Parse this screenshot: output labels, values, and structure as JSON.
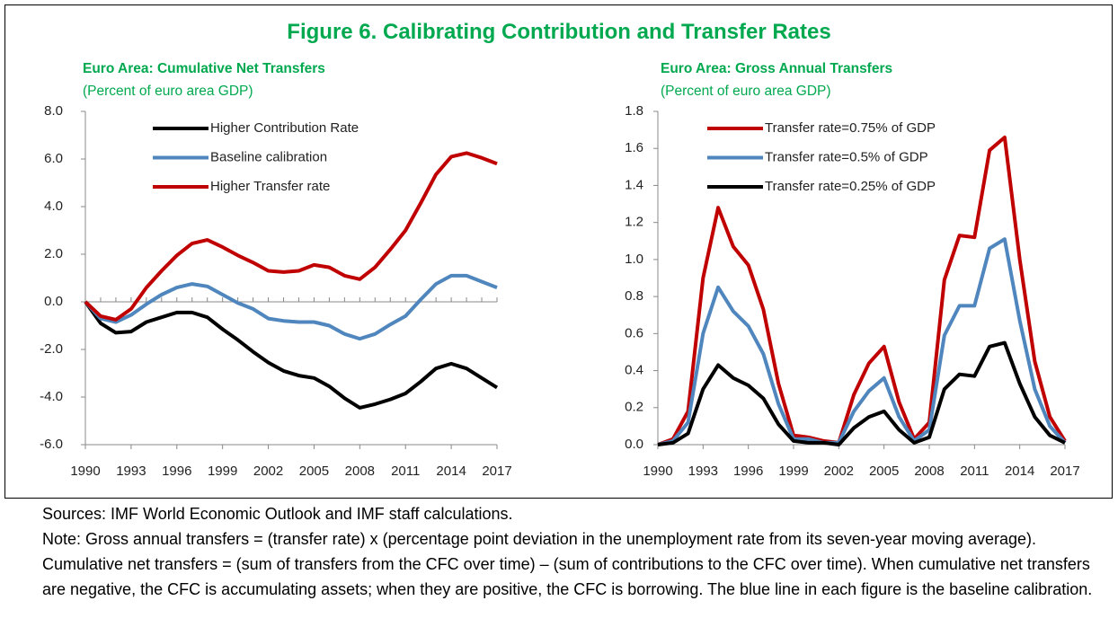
{
  "title": "Figure 6. Calibrating Contribution and Transfer Rates",
  "chart_data": [
    {
      "type": "line",
      "title": "Euro Area: Cumulative Net Transfers",
      "subtitle": "(Percent of euro area GDP)",
      "x": [
        1990,
        1991,
        1992,
        1993,
        1994,
        1995,
        1996,
        1997,
        1998,
        1999,
        2000,
        2001,
        2002,
        2003,
        2004,
        2005,
        2006,
        2007,
        2008,
        2009,
        2010,
        2011,
        2012,
        2013,
        2014,
        2015,
        2016,
        2017
      ],
      "series": [
        {
          "name": "Higher Contribution Rate",
          "color": "#000000",
          "values": [
            0,
            -0.9,
            -1.3,
            -1.25,
            -0.85,
            -0.65,
            -0.45,
            -0.45,
            -0.65,
            -1.15,
            -1.6,
            -2.1,
            -2.55,
            -2.9,
            -3.1,
            -3.2,
            -3.55,
            -4.05,
            -4.45,
            -4.3,
            -4.1,
            -3.85,
            -3.35,
            -2.8,
            -2.6,
            -2.8,
            -3.2,
            -3.6
          ]
        },
        {
          "name": "Baseline calibration",
          "color": "#4f86bd",
          "values": [
            0,
            -0.7,
            -0.85,
            -0.55,
            -0.1,
            0.3,
            0.6,
            0.75,
            0.65,
            0.3,
            -0.05,
            -0.3,
            -0.7,
            -0.8,
            -0.85,
            -0.85,
            -1.0,
            -1.35,
            -1.55,
            -1.35,
            -0.95,
            -0.6,
            0.1,
            0.75,
            1.1,
            1.1,
            0.85,
            0.6
          ]
        },
        {
          "name": "Higher Transfer rate",
          "color": "#c00000",
          "values": [
            0,
            -0.6,
            -0.75,
            -0.3,
            0.6,
            1.3,
            1.95,
            2.45,
            2.6,
            2.3,
            1.95,
            1.65,
            1.3,
            1.25,
            1.3,
            1.55,
            1.45,
            1.1,
            0.95,
            1.45,
            2.2,
            3.0,
            4.15,
            5.35,
            6.1,
            6.25,
            6.05,
            5.8
          ]
        }
      ],
      "xlim": [
        1990,
        2017
      ],
      "xticks": [
        1990,
        1993,
        1996,
        1999,
        2002,
        2005,
        2008,
        2011,
        2014,
        2017
      ],
      "ylim": [
        -6,
        8
      ],
      "yticks": [
        {
          "value": -6,
          "label": "-6.0"
        },
        {
          "value": -4,
          "label": "-4.0"
        },
        {
          "value": -2,
          "label": "-2.0"
        },
        {
          "value": 0,
          "label": "0.0"
        },
        {
          "value": 2,
          "label": "2.0"
        },
        {
          "value": 4,
          "label": "4.0"
        },
        {
          "value": 6,
          "label": "6.0"
        },
        {
          "value": 8,
          "label": "8.0"
        }
      ],
      "legend": "upper left"
    },
    {
      "type": "line",
      "title": "Euro Area: Gross Annual Transfers",
      "subtitle": "(Percent of euro area GDP)",
      "x": [
        1990,
        1991,
        1992,
        1993,
        1994,
        1995,
        1996,
        1997,
        1998,
        1999,
        2000,
        2001,
        2002,
        2003,
        2004,
        2005,
        2006,
        2007,
        2008,
        2009,
        2010,
        2011,
        2012,
        2013,
        2014,
        2015,
        2016,
        2017
      ],
      "series": [
        {
          "name": "Transfer rate=0.75% of GDP",
          "color": "#c00000",
          "values": [
            0,
            0.03,
            0.18,
            0.9,
            1.28,
            1.07,
            0.97,
            0.73,
            0.33,
            0.05,
            0.04,
            0.02,
            0.01,
            0.27,
            0.44,
            0.53,
            0.23,
            0.03,
            0.12,
            0.89,
            1.13,
            1.12,
            1.59,
            1.66,
            1.0,
            0.45,
            0.15,
            0.02
          ]
        },
        {
          "name": "Transfer rate=0.5% of GDP",
          "color": "#4f86bd",
          "values": [
            0,
            0.02,
            0.12,
            0.6,
            0.85,
            0.72,
            0.64,
            0.49,
            0.22,
            0.03,
            0.03,
            0.01,
            0.01,
            0.18,
            0.29,
            0.36,
            0.15,
            0.02,
            0.08,
            0.59,
            0.75,
            0.75,
            1.06,
            1.11,
            0.67,
            0.3,
            0.1,
            0.01
          ]
        },
        {
          "name": "Transfer rate=0.25% of GDP",
          "color": "#000000",
          "values": [
            0,
            0.01,
            0.06,
            0.3,
            0.43,
            0.36,
            0.32,
            0.25,
            0.11,
            0.02,
            0.01,
            0.01,
            0,
            0.09,
            0.15,
            0.18,
            0.08,
            0.01,
            0.04,
            0.3,
            0.38,
            0.37,
            0.53,
            0.55,
            0.33,
            0.15,
            0.05,
            0.01
          ]
        }
      ],
      "xlim": [
        1990,
        2017
      ],
      "xticks": [
        1990,
        1993,
        1996,
        1999,
        2002,
        2005,
        2008,
        2011,
        2014,
        2017
      ],
      "ylim": [
        0,
        1.8
      ],
      "yticks": [
        {
          "value": 0,
          "label": "0.0"
        },
        0.2,
        0.4,
        0.6,
        0.8,
        {
          "value": 1,
          "label": "1.0"
        },
        1.2,
        1.4,
        1.6,
        1.8
      ],
      "legend": "upper left"
    }
  ],
  "sources": "Sources: IMF World Economic Outlook and IMF staff calculations.",
  "note": "Note: Gross annual transfers = (transfer rate) x (percentage point deviation in the unemployment rate from its seven-year moving average). Cumulative net transfers = (sum of transfers from the CFC over time) – (sum of contributions to the CFC over time). When cumulative net transfers are negative, the CFC is accumulating assets; when they are positive, the CFC is borrowing. The blue line in each figure is the baseline calibration."
}
